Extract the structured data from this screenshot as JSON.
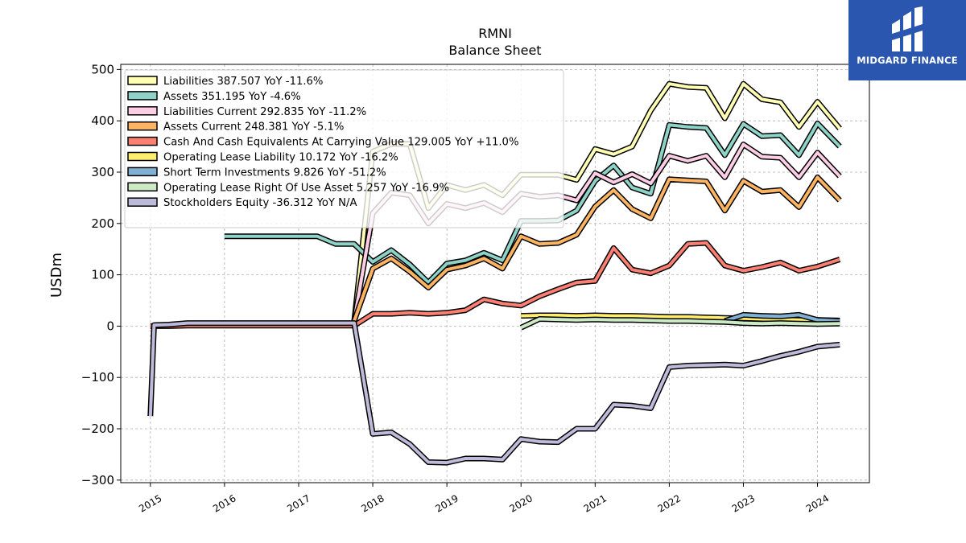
{
  "brand": {
    "name": "MIDGARD FINANCE",
    "bg_color": "#2a56b0"
  },
  "chart_data": {
    "type": "line",
    "title": "RMNI",
    "subtitle": "Balance  Sheet",
    "ylabel": "USDm",
    "xlabel": "",
    "xlim": [
      2014.6,
      2024.7
    ],
    "ylim": [
      -305,
      510
    ],
    "yticks": [
      500,
      400,
      300,
      200,
      100,
      0,
      -100,
      -200,
      -300
    ],
    "ytick_labels": [
      "500",
      "400",
      "300",
      "200",
      "100",
      "0",
      "−100",
      "−200",
      "−300"
    ],
    "xticks": [
      2015,
      2016,
      2017,
      2018,
      2019,
      2020,
      2021,
      2022,
      2023,
      2024
    ],
    "xtick_labels": [
      "2015",
      "2016",
      "2017",
      "2018",
      "2019",
      "2020",
      "2021",
      "2022",
      "2023",
      "2024"
    ],
    "grid": true,
    "legend_position": "top-left",
    "series": [
      {
        "name": "Liabilities",
        "legend_label": "Liabilities  387.507 YoY -11.6%",
        "color": "#ffffb3",
        "points": [
          [
            2017.75,
            10
          ],
          [
            2018.0,
            340
          ],
          [
            2018.25,
            355
          ],
          [
            2018.5,
            355
          ],
          [
            2018.75,
            230
          ],
          [
            2019.0,
            275
          ],
          [
            2019.25,
            265
          ],
          [
            2019.5,
            275
          ],
          [
            2019.75,
            255
          ],
          [
            2020.0,
            295
          ],
          [
            2020.25,
            295
          ],
          [
            2020.5,
            295
          ],
          [
            2020.75,
            285
          ],
          [
            2021.0,
            345
          ],
          [
            2021.25,
            335
          ],
          [
            2021.5,
            350
          ],
          [
            2021.75,
            420
          ],
          [
            2022.0,
            472
          ],
          [
            2022.25,
            466
          ],
          [
            2022.5,
            464
          ],
          [
            2022.75,
            405
          ],
          [
            2023.0,
            472
          ],
          [
            2023.25,
            442
          ],
          [
            2023.5,
            436
          ],
          [
            2023.75,
            388
          ],
          [
            2024.0,
            437
          ],
          [
            2024.3,
            385
          ]
        ]
      },
      {
        "name": "Assets",
        "legend_label": "Assets  351.195 YoY -4.6%",
        "color": "#8dd3c7",
        "points": [
          [
            2016.0,
            175
          ],
          [
            2016.25,
            175
          ],
          [
            2016.5,
            175
          ],
          [
            2016.75,
            175
          ],
          [
            2017.0,
            175
          ],
          [
            2017.25,
            175
          ],
          [
            2017.5,
            160
          ],
          [
            2017.75,
            160
          ],
          [
            2018.0,
            125
          ],
          [
            2018.25,
            148
          ],
          [
            2018.5,
            120
          ],
          [
            2018.75,
            85
          ],
          [
            2019.0,
            122
          ],
          [
            2019.25,
            128
          ],
          [
            2019.5,
            143
          ],
          [
            2019.75,
            128
          ],
          [
            2020.0,
            205
          ],
          [
            2020.25,
            205
          ],
          [
            2020.5,
            206
          ],
          [
            2020.75,
            225
          ],
          [
            2021.0,
            283
          ],
          [
            2021.25,
            313
          ],
          [
            2021.5,
            270
          ],
          [
            2021.75,
            258
          ],
          [
            2022.0,
            392
          ],
          [
            2022.25,
            388
          ],
          [
            2022.5,
            386
          ],
          [
            2022.75,
            333
          ],
          [
            2023.0,
            394
          ],
          [
            2023.25,
            370
          ],
          [
            2023.5,
            372
          ],
          [
            2023.75,
            333
          ],
          [
            2024.0,
            395
          ],
          [
            2024.3,
            350
          ]
        ]
      },
      {
        "name": "Liabilities Current",
        "legend_label": "Liabilities Current  292.835 YoY -11.2%",
        "color": "#fccde5",
        "points": [
          [
            2017.75,
            10
          ],
          [
            2018.0,
            220
          ],
          [
            2018.25,
            260
          ],
          [
            2018.5,
            255
          ],
          [
            2018.75,
            200
          ],
          [
            2019.0,
            238
          ],
          [
            2019.25,
            230
          ],
          [
            2019.5,
            240
          ],
          [
            2019.75,
            222
          ],
          [
            2020.0,
            258
          ],
          [
            2020.25,
            252
          ],
          [
            2020.5,
            255
          ],
          [
            2020.75,
            245
          ],
          [
            2021.0,
            298
          ],
          [
            2021.25,
            280
          ],
          [
            2021.5,
            296
          ],
          [
            2021.75,
            278
          ],
          [
            2022.0,
            332
          ],
          [
            2022.25,
            322
          ],
          [
            2022.5,
            332
          ],
          [
            2022.75,
            290
          ],
          [
            2023.0,
            354
          ],
          [
            2023.25,
            330
          ],
          [
            2023.5,
            328
          ],
          [
            2023.75,
            290
          ],
          [
            2024.0,
            338
          ],
          [
            2024.3,
            292
          ]
        ]
      },
      {
        "name": "Assets Current",
        "legend_label": "Assets Current  248.381 YoY -5.1%",
        "color": "#fdb462",
        "points": [
          [
            2017.75,
            10
          ],
          [
            2018.0,
            112
          ],
          [
            2018.25,
            132
          ],
          [
            2018.5,
            106
          ],
          [
            2018.75,
            75
          ],
          [
            2019.0,
            110
          ],
          [
            2019.25,
            118
          ],
          [
            2019.5,
            132
          ],
          [
            2019.75,
            112
          ],
          [
            2020.0,
            175
          ],
          [
            2020.25,
            160
          ],
          [
            2020.5,
            162
          ],
          [
            2020.75,
            178
          ],
          [
            2021.0,
            233
          ],
          [
            2021.25,
            265
          ],
          [
            2021.5,
            228
          ],
          [
            2021.75,
            210
          ],
          [
            2022.0,
            286
          ],
          [
            2022.25,
            284
          ],
          [
            2022.5,
            282
          ],
          [
            2022.75,
            225
          ],
          [
            2023.0,
            283
          ],
          [
            2023.25,
            262
          ],
          [
            2023.5,
            265
          ],
          [
            2023.75,
            232
          ],
          [
            2024.0,
            290
          ],
          [
            2024.3,
            245
          ]
        ]
      },
      {
        "name": "Cash And Cash Equivalents At Carrying Value",
        "legend_label": "Cash And Cash Equivalents At Carrying Value  129.005 YoY +11.0%",
        "color": "#fb8072",
        "points": [
          [
            2015.0,
            0
          ],
          [
            2015.25,
            0
          ],
          [
            2015.5,
            1
          ],
          [
            2015.75,
            1
          ],
          [
            2016.0,
            1
          ],
          [
            2016.25,
            1
          ],
          [
            2016.5,
            1
          ],
          [
            2016.75,
            1
          ],
          [
            2017.0,
            1
          ],
          [
            2017.25,
            1
          ],
          [
            2017.5,
            1
          ],
          [
            2017.75,
            1
          ],
          [
            2018.0,
            24
          ],
          [
            2018.25,
            24
          ],
          [
            2018.5,
            26
          ],
          [
            2018.75,
            24
          ],
          [
            2019.0,
            26
          ],
          [
            2019.25,
            31
          ],
          [
            2019.5,
            52
          ],
          [
            2019.75,
            44
          ],
          [
            2020.0,
            40
          ],
          [
            2020.25,
            58
          ],
          [
            2020.5,
            72
          ],
          [
            2020.75,
            85
          ],
          [
            2021.0,
            88
          ],
          [
            2021.25,
            152
          ],
          [
            2021.5,
            110
          ],
          [
            2021.75,
            103
          ],
          [
            2022.0,
            118
          ],
          [
            2022.25,
            160
          ],
          [
            2022.5,
            162
          ],
          [
            2022.75,
            118
          ],
          [
            2023.0,
            108
          ],
          [
            2023.25,
            115
          ],
          [
            2023.5,
            124
          ],
          [
            2023.75,
            108
          ],
          [
            2024.0,
            116
          ],
          [
            2024.3,
            130
          ]
        ]
      },
      {
        "name": "Operating Lease Liability",
        "legend_label": "Operating Lease Liability  10.172 YoY -16.2%",
        "color": "#ffed6f",
        "points": [
          [
            2020.0,
            20
          ],
          [
            2020.25,
            21
          ],
          [
            2020.5,
            21
          ],
          [
            2020.75,
            20
          ],
          [
            2021.0,
            21
          ],
          [
            2021.25,
            20
          ],
          [
            2021.5,
            20
          ],
          [
            2021.75,
            19
          ],
          [
            2022.0,
            18
          ],
          [
            2022.25,
            18
          ],
          [
            2022.5,
            17
          ],
          [
            2022.75,
            16
          ],
          [
            2023.0,
            15
          ],
          [
            2023.25,
            14
          ],
          [
            2023.5,
            13
          ],
          [
            2023.75,
            12
          ],
          [
            2024.0,
            12
          ],
          [
            2024.3,
            11
          ]
        ]
      },
      {
        "name": "Short Term Investments",
        "legend_label": "Short Term Investments  9.826 YoY -51.2%",
        "color": "#80b1d3",
        "points": [
          [
            2022.75,
            10
          ],
          [
            2023.0,
            22
          ],
          [
            2023.25,
            20
          ],
          [
            2023.5,
            19
          ],
          [
            2023.75,
            22
          ],
          [
            2024.0,
            12
          ],
          [
            2024.3,
            10
          ]
        ]
      },
      {
        "name": "Operating Lease Right Of Use Asset",
        "legend_label": "Operating Lease Right Of Use Asset  5.257 YoY -16.9%",
        "color": "#ccebc5",
        "points": [
          [
            2020.0,
            -3
          ],
          [
            2020.25,
            14
          ],
          [
            2020.5,
            13
          ],
          [
            2020.75,
            12
          ],
          [
            2021.0,
            13
          ],
          [
            2021.25,
            12
          ],
          [
            2021.5,
            12
          ],
          [
            2021.75,
            11
          ],
          [
            2022.0,
            10
          ],
          [
            2022.25,
            10
          ],
          [
            2022.5,
            9
          ],
          [
            2022.75,
            8
          ],
          [
            2023.0,
            6
          ],
          [
            2023.25,
            5
          ],
          [
            2023.5,
            6
          ],
          [
            2023.75,
            5
          ],
          [
            2024.0,
            4
          ],
          [
            2024.3,
            5
          ]
        ]
      },
      {
        "name": "Stockholders Equity",
        "legend_label": "Stockholders Equity  -36.312 YoY N/A",
        "color": "#bebada",
        "points": [
          [
            2015.0,
            -175
          ],
          [
            2015.05,
            2
          ],
          [
            2015.25,
            3
          ],
          [
            2015.5,
            6
          ],
          [
            2015.75,
            6
          ],
          [
            2016.0,
            6
          ],
          [
            2016.25,
            6
          ],
          [
            2016.5,
            6
          ],
          [
            2016.75,
            6
          ],
          [
            2017.0,
            6
          ],
          [
            2017.25,
            6
          ],
          [
            2017.5,
            6
          ],
          [
            2017.75,
            6
          ],
          [
            2018.0,
            -210
          ],
          [
            2018.25,
            -207
          ],
          [
            2018.5,
            -230
          ],
          [
            2018.75,
            -265
          ],
          [
            2019.0,
            -266
          ],
          [
            2019.25,
            -258
          ],
          [
            2019.5,
            -258
          ],
          [
            2019.75,
            -260
          ],
          [
            2020.0,
            -220
          ],
          [
            2020.25,
            -225
          ],
          [
            2020.5,
            -226
          ],
          [
            2020.75,
            -200
          ],
          [
            2021.0,
            -200
          ],
          [
            2021.25,
            -153
          ],
          [
            2021.5,
            -155
          ],
          [
            2021.75,
            -160
          ],
          [
            2022.0,
            -80
          ],
          [
            2022.25,
            -77
          ],
          [
            2022.5,
            -76
          ],
          [
            2022.75,
            -75
          ],
          [
            2023.0,
            -77
          ],
          [
            2023.25,
            -68
          ],
          [
            2023.5,
            -58
          ],
          [
            2023.75,
            -50
          ],
          [
            2024.0,
            -40
          ],
          [
            2024.3,
            -36
          ]
        ]
      }
    ]
  }
}
